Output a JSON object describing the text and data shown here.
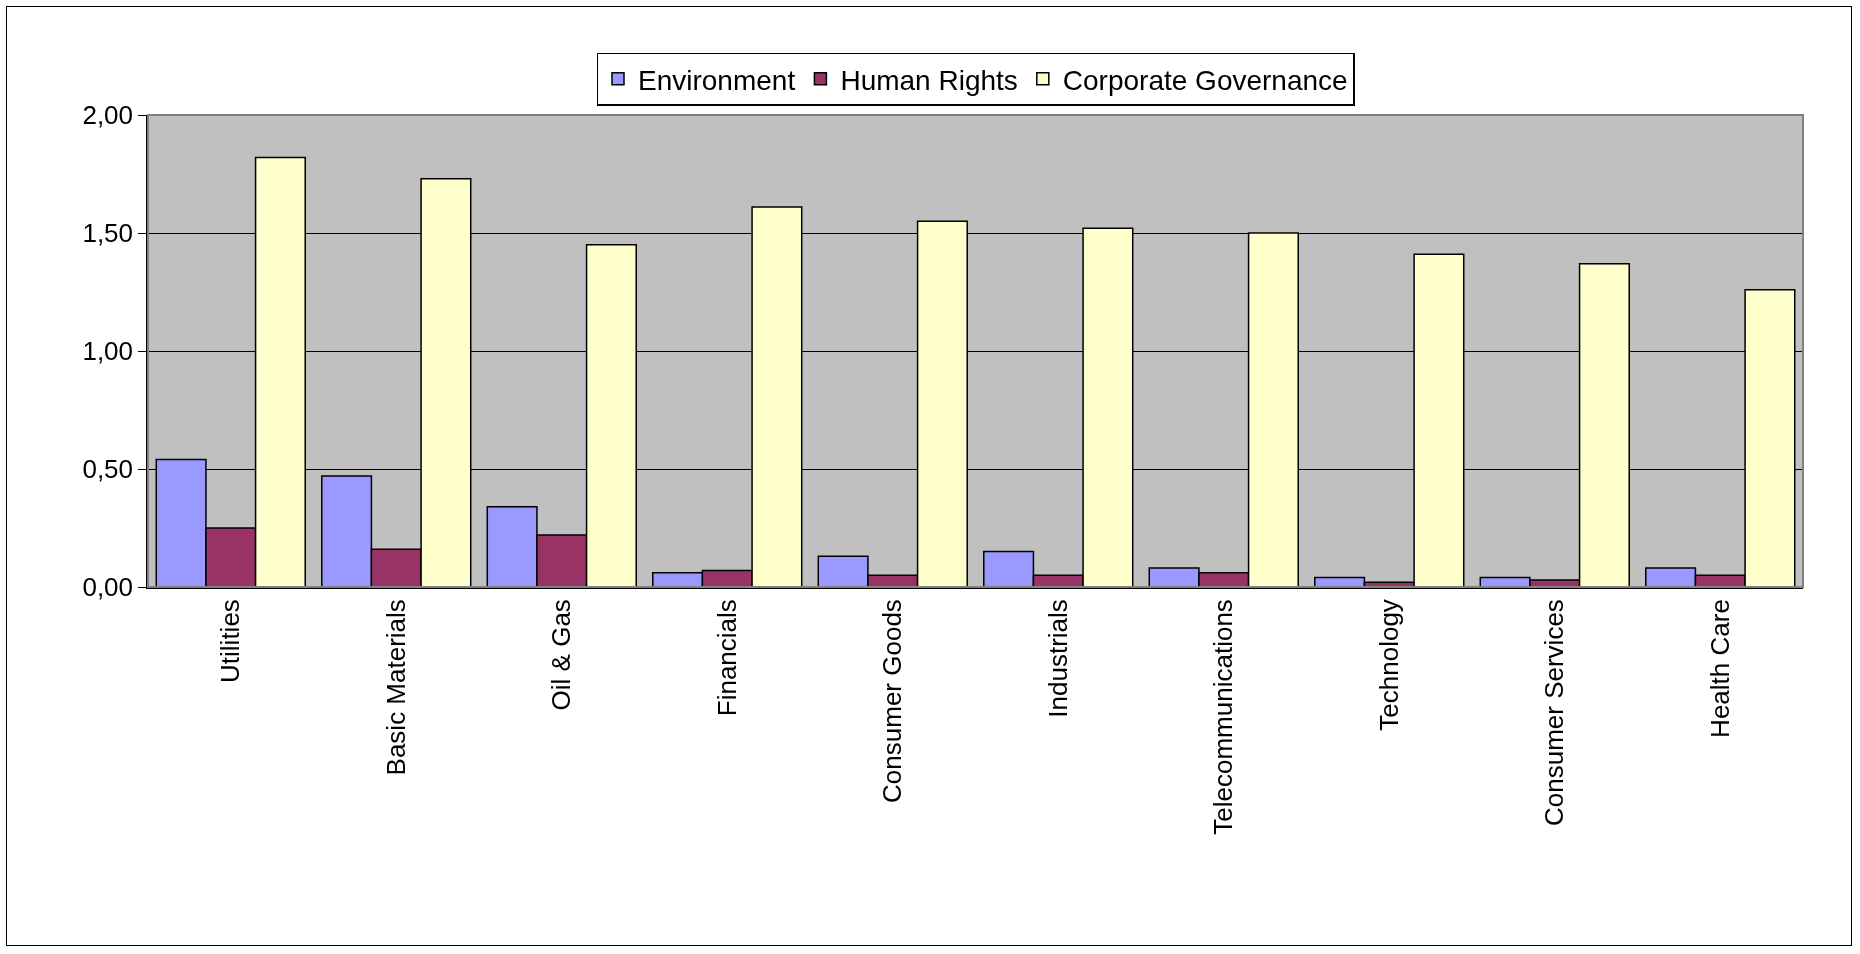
{
  "chart_data": {
    "type": "bar",
    "categories": [
      "Utilities",
      "Basic Materials",
      "Oil & Gas",
      "Financials",
      "Consumer Goods",
      "Industrials",
      "Telecommunications",
      "Technology",
      "Consumer Services",
      "Health Care"
    ],
    "series": [
      {
        "name": "Environment",
        "color": "#9999ff",
        "values": [
          0.54,
          0.47,
          0.34,
          0.06,
          0.13,
          0.15,
          0.08,
          0.04,
          0.04,
          0.08
        ]
      },
      {
        "name": "Human Rights",
        "color": "#993366",
        "values": [
          0.25,
          0.16,
          0.22,
          0.07,
          0.05,
          0.05,
          0.06,
          0.02,
          0.03,
          0.05
        ]
      },
      {
        "name": "Corporate Governance",
        "color": "#ffffcc",
        "values": [
          1.82,
          1.73,
          1.45,
          1.61,
          1.55,
          1.52,
          1.5,
          1.41,
          1.37,
          1.26
        ]
      }
    ],
    "ylim": [
      0,
      2
    ],
    "yticks": [
      {
        "value": 0,
        "label": "0,00"
      },
      {
        "value": 0.5,
        "label": "0,50"
      },
      {
        "value": 1,
        "label": "1,00"
      },
      {
        "value": 1.5,
        "label": "1,50"
      },
      {
        "value": 2,
        "label": "2,00"
      }
    ],
    "grid": "y",
    "legend": "top"
  }
}
